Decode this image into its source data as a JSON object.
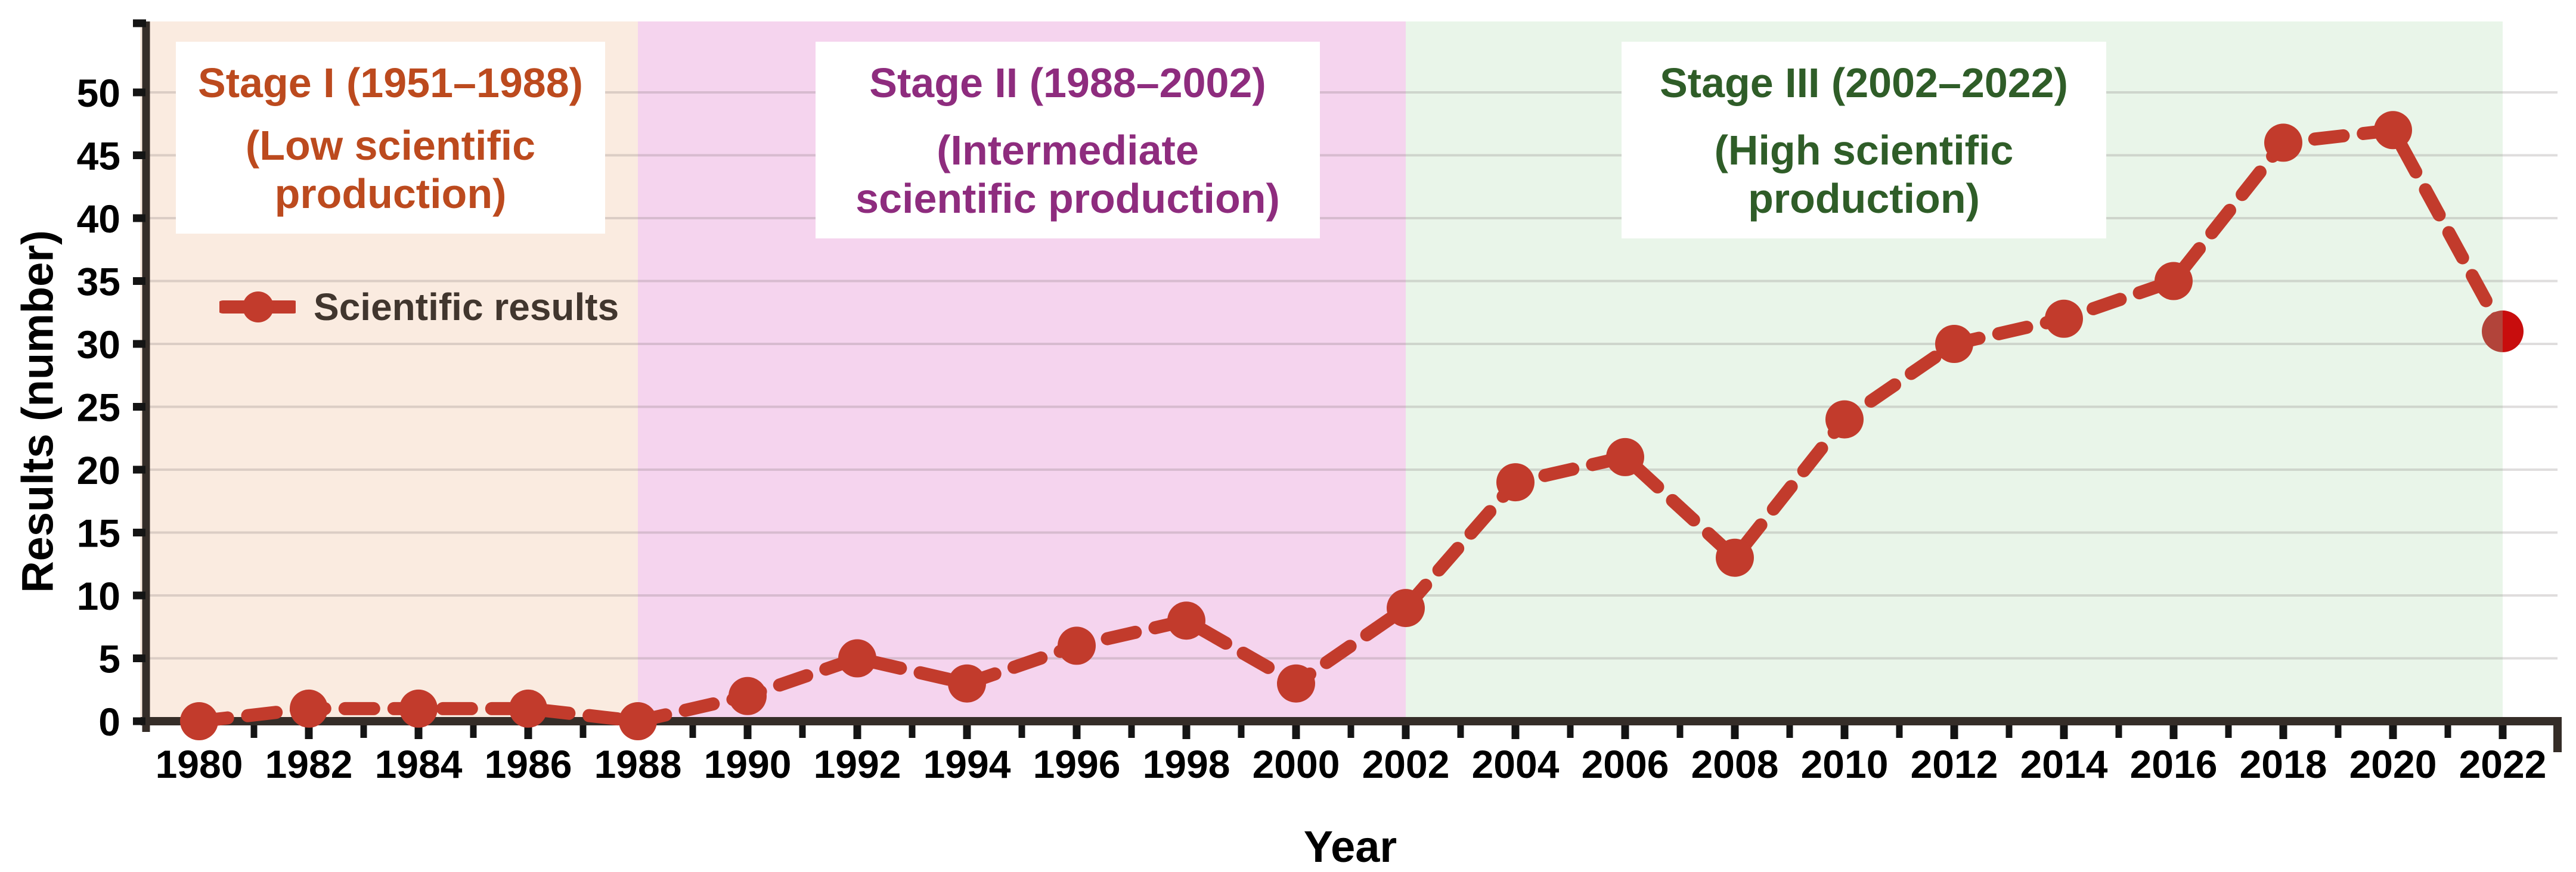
{
  "page": {
    "background": "#FFFFFF"
  },
  "chart_data": {
    "type": "line",
    "title": "",
    "xlabel": "Year",
    "ylabel": "Results (number)",
    "ylim": [
      0,
      50
    ],
    "ytick_step": 5,
    "grid": true,
    "legend_position": "upper-left-inside",
    "categories": [
      1980,
      1982,
      1984,
      1986,
      1988,
      1990,
      1992,
      1994,
      1996,
      1998,
      2000,
      2002,
      2004,
      2006,
      2008,
      2010,
      2012,
      2014,
      2016,
      2018,
      2020,
      2022
    ],
    "series": [
      {
        "name": "Scientific results",
        "line_style": "dashed",
        "marker": "circle",
        "color": "#C23B2C",
        "values": [
          0,
          1,
          1,
          1,
          0,
          2,
          5,
          3,
          6,
          8,
          3,
          9,
          19,
          21,
          13,
          24,
          30,
          32,
          35,
          46,
          47,
          31
        ]
      }
    ],
    "last_point": {
      "year": 2022,
      "value": 31,
      "color": "#C80D0D",
      "shaded_color": "#B2443A"
    },
    "stages": [
      {
        "title": "Stage I (1951–1988)",
        "subtitle": "(Low scientific\nproduction)",
        "span_years": [
          1980,
          1988
        ],
        "bg_color": "#FAEBE0",
        "text_color": "#BC4A1E"
      },
      {
        "title": "Stage II (1988–2002)",
        "subtitle": "(Intermediate\nscientific production)",
        "span_years": [
          1988,
          2002
        ],
        "bg_color": "#F5D4EE",
        "text_color": "#8E2C7E"
      },
      {
        "title": "Stage III (2002–2022)",
        "subtitle": "(High scientific\nproduction)",
        "span_years": [
          2002,
          2022
        ],
        "bg_color": "#E9F5E9",
        "text_color": "#2F5D28"
      }
    ],
    "legend": {
      "label": "Scientific results",
      "text_color": "#41362E"
    },
    "axis": {
      "line_color": "#352D28",
      "tick_color": "#141414",
      "label_color": "#000000"
    },
    "gridline_color": "rgba(110,100,100,0.22)"
  }
}
